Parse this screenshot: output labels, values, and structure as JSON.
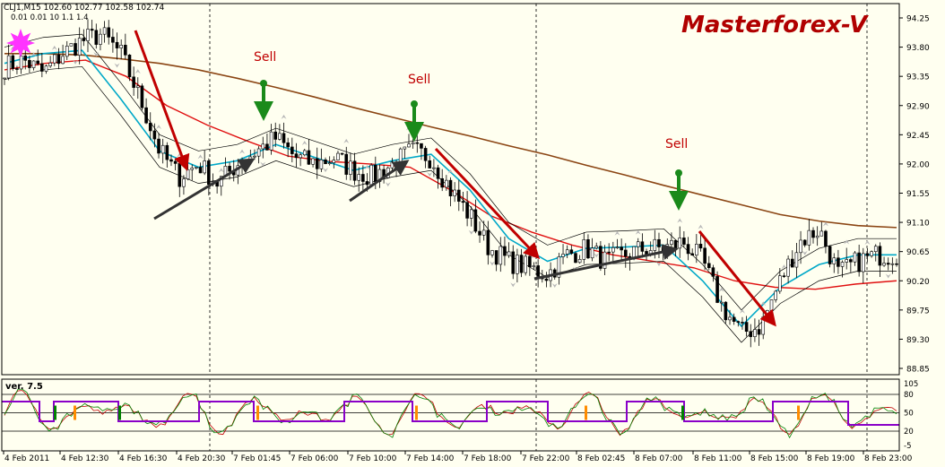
{
  "header": {
    "symbol_line": "CLJ1,M15  102.60 102.77 102.58 102.74",
    "indicator_line": "0.01  0.01   10  1.1  1.4",
    "brand": "Masterforex-V"
  },
  "colors": {
    "background": "#fffff0",
    "axis": "#000000",
    "grid": "#000000",
    "candle": "#000000",
    "ma_slow": "#8b4513",
    "ma_mid": "#e01010",
    "ma_fast": "#00a8c8",
    "envelope": "#000000",
    "signal_arrow_down": "#c00000",
    "signal_arrow_up": "#333333",
    "sell_arrow": "#1a8a1a",
    "sell_label": "#c00000",
    "brand": "#b00000",
    "osc_purple": "#8a00c8",
    "osc_red": "#c00000",
    "osc_green": "#008000",
    "osc_orange": "#ff8c00"
  },
  "chart_data": [
    {
      "type": "candlestick",
      "title": "",
      "ylim": [
        88.7,
        94.35
      ],
      "y_ticks": [
        "94.25",
        "93.80",
        "93.35",
        "92.90",
        "92.45",
        "92.00",
        "91.55",
        "91.10",
        "90.65",
        "90.20",
        "89.75",
        "89.30",
        "88.85"
      ],
      "x_ticks": [
        "4 Feb 2011",
        "4 Feb 12:30",
        "4 Feb 16:30",
        "4 Feb 20:30",
        "7 Feb 01:45",
        "7 Feb 06:00",
        "7 Feb 10:00",
        "7 Feb 14:00",
        "7 Feb 18:00",
        "7 Feb 22:00",
        "8 Feb 02:45",
        "8 Feb 07:00",
        "8 Feb 11:00",
        "8 Feb 15:00",
        "8 Feb 19:00",
        "8 Feb 23:00"
      ],
      "close_path": [
        93.5,
        93.6,
        93.4,
        93.7,
        93.9,
        94.0,
        93.7,
        93.0,
        92.2,
        91.8,
        92.0,
        91.7,
        92.0,
        92.2,
        92.4,
        92.1,
        92.0,
        92.1,
        91.9,
        91.8,
        92.0,
        92.2,
        92.1,
        91.6,
        91.2,
        90.7,
        90.5,
        90.4,
        90.3,
        90.6,
        90.7,
        90.5,
        90.6,
        90.7,
        90.7,
        90.8,
        90.5,
        89.8,
        89.4,
        89.5,
        90.2,
        90.8,
        91.0,
        90.3,
        90.5,
        90.6,
        90.6
      ],
      "series": [
        {
          "name": "",
          "color_key": "ma_slow",
          "values": [
            93.7,
            93.7,
            93.68,
            93.62,
            93.55,
            93.45,
            93.32,
            93.18,
            93.03,
            92.87,
            92.72,
            92.57,
            92.43,
            92.28,
            92.14,
            91.98,
            91.83,
            91.67,
            91.52,
            91.37,
            91.22,
            91.12,
            91.05,
            91.02
          ]
        },
        {
          "name": "",
          "color_key": "ma_mid",
          "values": [
            93.45,
            93.55,
            93.6,
            93.35,
            92.9,
            92.6,
            92.35,
            92.12,
            92.04,
            92.0,
            91.95,
            91.6,
            91.2,
            90.95,
            90.75,
            90.6,
            90.5,
            90.4,
            90.2,
            90.1,
            90.07,
            90.15,
            90.2
          ]
        },
        {
          "name": "",
          "color_key": "ma_fast",
          "values": [
            93.55,
            93.7,
            93.75,
            93.0,
            92.2,
            91.95,
            92.05,
            92.3,
            92.1,
            91.9,
            92.05,
            92.15,
            91.6,
            90.85,
            90.5,
            90.7,
            90.72,
            90.75,
            90.2,
            89.5,
            90.1,
            90.45,
            90.6,
            90.6
          ]
        }
      ],
      "annotations": [
        {
          "text": "Sell",
          "x_index": 1,
          "y": 93.5
        },
        {
          "text": "Sell",
          "x_index": 2,
          "y": 93.15
        },
        {
          "text": "Sell",
          "x_index": 3,
          "y": 92.3
        }
      ]
    },
    {
      "type": "line",
      "title": "ver. 7.5",
      "ylim": [
        -5,
        105
      ],
      "y_ticks": [
        "105",
        "80",
        "50",
        "20",
        "-5"
      ],
      "levels": [
        80,
        50,
        20
      ]
    }
  ]
}
